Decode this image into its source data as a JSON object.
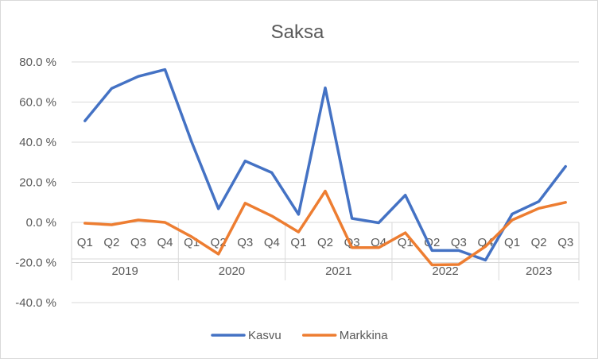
{
  "chart_data": {
    "type": "line",
    "title": "Saksa",
    "xlabel": "",
    "ylabel": "",
    "ylim": [
      -40,
      80
    ],
    "ytick_step": 20,
    "ytick_labels": [
      "80.0 %",
      "60.0 %",
      "40.0 %",
      "20.0 %",
      "0.0 %",
      "-20.0 %",
      "-40.0 %"
    ],
    "grid": true,
    "legend": "bottom",
    "years": [
      {
        "label": "2019",
        "quarters": [
          "Q1",
          "Q2",
          "Q3",
          "Q4"
        ]
      },
      {
        "label": "2020",
        "quarters": [
          "Q1",
          "Q2",
          "Q3",
          "Q4"
        ]
      },
      {
        "label": "2021",
        "quarters": [
          "Q1",
          "Q2",
          "Q3",
          "Q4"
        ]
      },
      {
        "label": "2022",
        "quarters": [
          "Q1",
          "Q2",
          "Q3",
          "Q4"
        ]
      },
      {
        "label": "2023",
        "quarters": [
          "Q1",
          "Q2",
          "Q3"
        ]
      }
    ],
    "series": [
      {
        "name": "Kasvu",
        "color": "#4472c4",
        "values": [
          50.6,
          66.8,
          72.8,
          76.2,
          40.0,
          6.8,
          30.6,
          24.8,
          4.0,
          67.1,
          2.0,
          -0.2,
          13.6,
          -14.0,
          -14.0,
          -18.8,
          4.2,
          10.4,
          27.9
        ]
      },
      {
        "name": "Markkina",
        "color": "#ed7d31",
        "values": [
          -0.4,
          -1.2,
          1.2,
          0.0,
          -7.2,
          -15.8,
          9.6,
          3.2,
          -4.8,
          15.6,
          -12.6,
          -12.6,
          -5.2,
          -21.2,
          -21.0,
          -12.0,
          1.2,
          7.0,
          10.0
        ]
      }
    ]
  }
}
